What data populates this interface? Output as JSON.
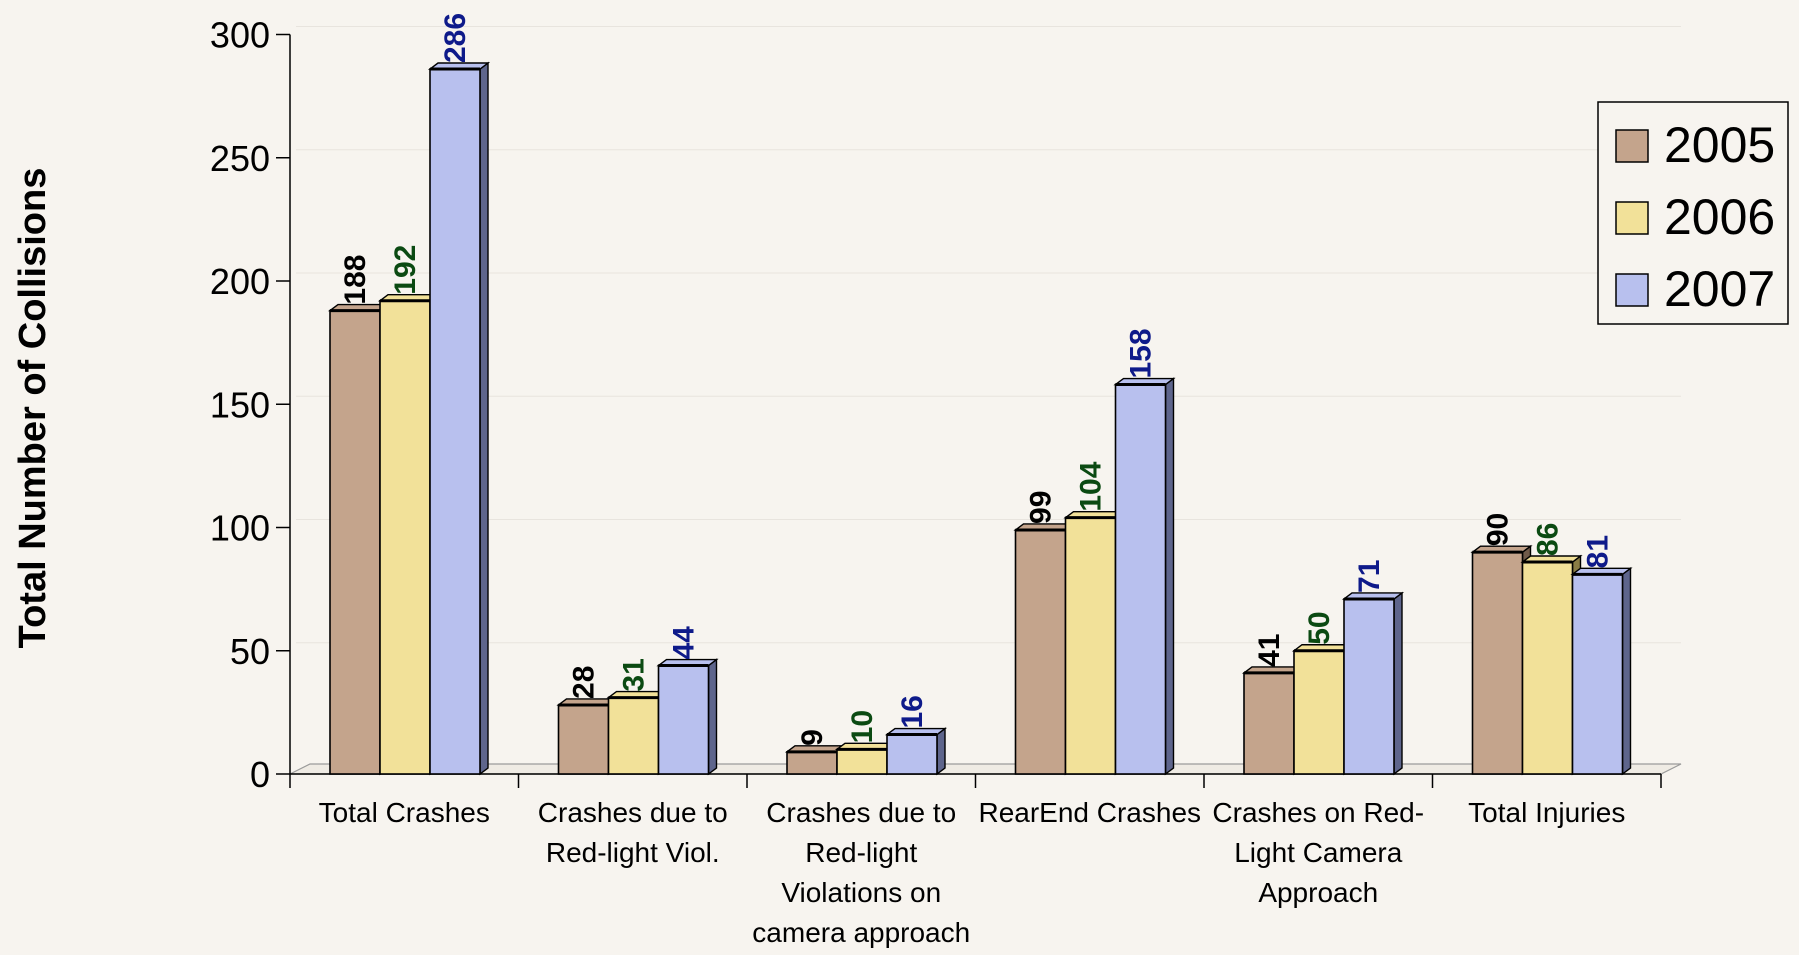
{
  "chart_data": {
    "type": "bar",
    "style": "3d-clustered",
    "title": "",
    "ylabel": "Total Number of Collisions",
    "xlabel": "",
    "ylim": [
      0,
      300
    ],
    "yticks": [
      0,
      50,
      100,
      150,
      200,
      250,
      300
    ],
    "grid": true,
    "legend_position": "right",
    "categories": [
      [
        "Total Crashes"
      ],
      [
        "Crashes due to",
        "Red-light Viol."
      ],
      [
        "Crashes due to",
        "Red-light",
        "Violations on",
        "camera approach"
      ],
      [
        "RearEnd Crashes"
      ],
      [
        "Crashes on Red-",
        "Light Camera",
        "Approach"
      ],
      [
        "Total Injuries"
      ]
    ],
    "series": [
      {
        "name": "2005",
        "values": [
          188,
          28,
          9,
          99,
          41,
          90
        ],
        "fill": "#c4a48c",
        "side": "#6f5a4a",
        "label_color": "#000000"
      },
      {
        "name": "2006",
        "values": [
          192,
          31,
          10,
          104,
          50,
          86
        ],
        "fill": "#f2e199",
        "side": "#8a7d45",
        "label_color": "#0b4a12"
      },
      {
        "name": "2007",
        "values": [
          286,
          44,
          16,
          158,
          71,
          81
        ],
        "fill": "#b8c0ee",
        "side": "#5e658c",
        "label_color": "#0e1a8a"
      }
    ]
  }
}
